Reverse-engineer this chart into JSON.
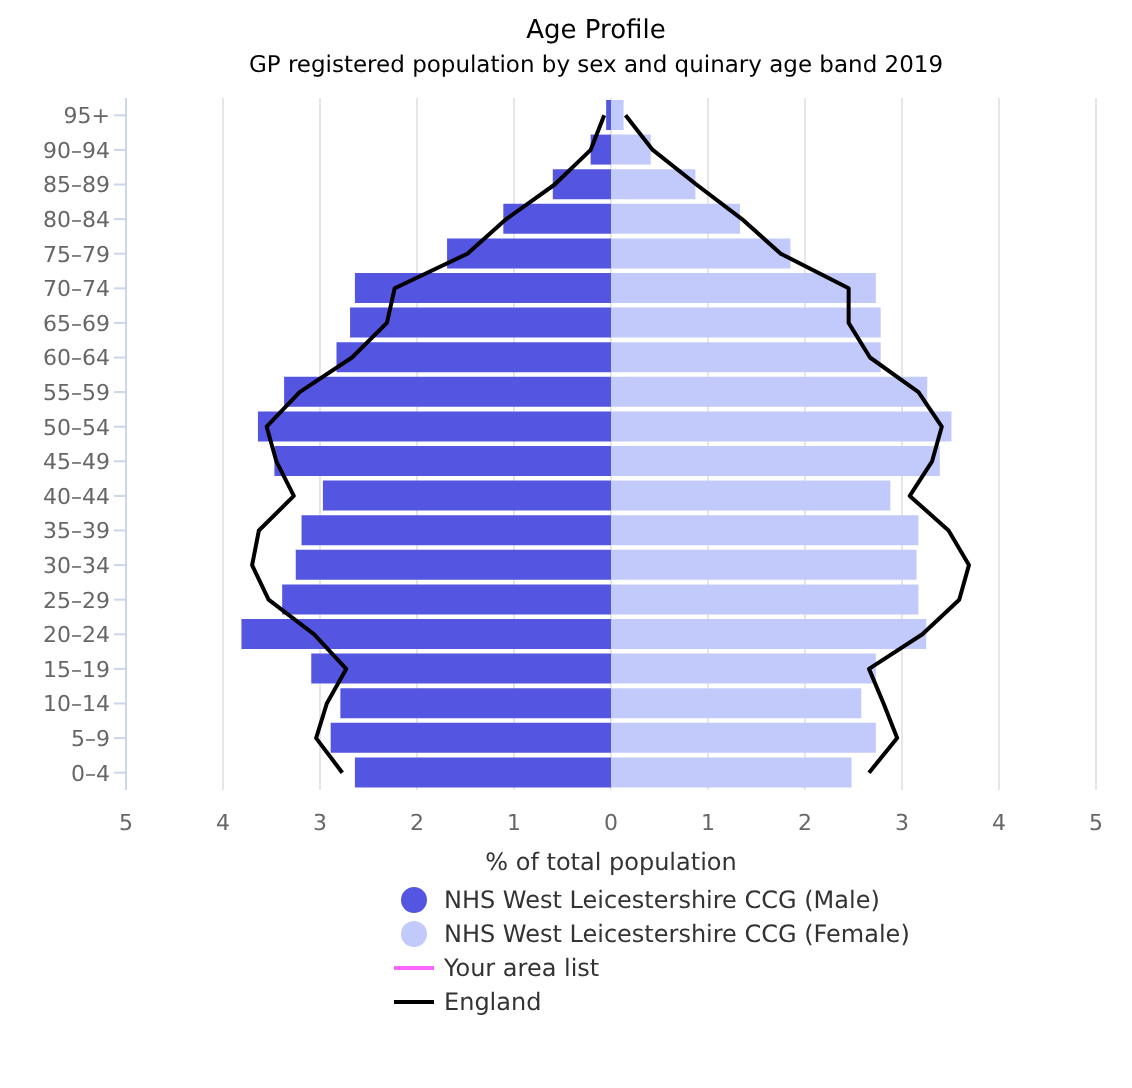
{
  "chart_data": {
    "type": "bar",
    "orientation": "horizontal",
    "stacked": true,
    "title": "Age Profile",
    "subtitle": "GP registered population by sex and quinary age band 2019",
    "xlabel": "% of total population",
    "categories": [
      "95+",
      "90–94",
      "85–89",
      "80–84",
      "75–79",
      "70–74",
      "65–69",
      "60–64",
      "55–59",
      "50–54",
      "45–49",
      "40–44",
      "35–39",
      "30–34",
      "25–29",
      "20–24",
      "15–19",
      "10–14",
      "5–9",
      "0–4"
    ],
    "series": [
      {
        "name": "NHS West Leicestershire CCG (Male)",
        "color": "#5455e0",
        "values": [
          -0.05,
          -0.21,
          -0.6,
          -1.11,
          -1.69,
          -2.64,
          -2.69,
          -2.83,
          -3.37,
          -3.64,
          -3.47,
          -2.97,
          -3.19,
          -3.25,
          -3.39,
          -3.81,
          -3.09,
          -2.79,
          -2.89,
          -2.64
        ]
      },
      {
        "name": "NHS West Leicestershire CCG (Female)",
        "color": "#c2cafc",
        "values": [
          0.13,
          0.41,
          0.87,
          1.33,
          1.85,
          2.73,
          2.78,
          2.78,
          3.26,
          3.51,
          3.39,
          2.88,
          3.17,
          3.15,
          3.17,
          3.25,
          2.73,
          2.58,
          2.73,
          2.48
        ]
      },
      {
        "name": "Your area list",
        "type": "line",
        "color": "#ff66ff",
        "values": [
          null,
          null,
          null,
          null,
          null,
          null,
          null,
          null,
          null,
          null,
          null,
          null,
          null,
          null,
          null,
          null,
          null,
          null,
          null,
          null
        ]
      },
      {
        "name": "England",
        "type": "line",
        "color": "#000000",
        "values": [
          -0.07,
          -0.21,
          -0.58,
          -1.08,
          -1.48,
          -2.23,
          -2.31,
          -2.67,
          -3.21,
          -3.55,
          -3.45,
          -3.27,
          -3.63,
          -3.7,
          -3.53,
          -3.06,
          -2.73,
          -2.93,
          -3.04,
          -2.77
        ]
      },
      {
        "type": "line",
        "color": "#000000",
        "values": [
          0.15,
          0.43,
          0.88,
          1.35,
          1.75,
          2.45,
          2.45,
          2.67,
          3.17,
          3.41,
          3.31,
          3.08,
          3.48,
          3.69,
          3.59,
          3.21,
          2.66,
          2.81,
          2.95,
          2.66
        ]
      }
    ],
    "xlim": [
      -5,
      5
    ],
    "xticks": [
      {
        "value": -5,
        "label": "5"
      },
      {
        "value": -4,
        "label": "4"
      },
      {
        "value": -3,
        "label": "3"
      },
      {
        "value": -2,
        "label": "2"
      },
      {
        "value": -1,
        "label": "1"
      },
      0,
      1,
      2,
      3,
      4,
      5
    ],
    "grid": "x",
    "legend": "bottom"
  }
}
